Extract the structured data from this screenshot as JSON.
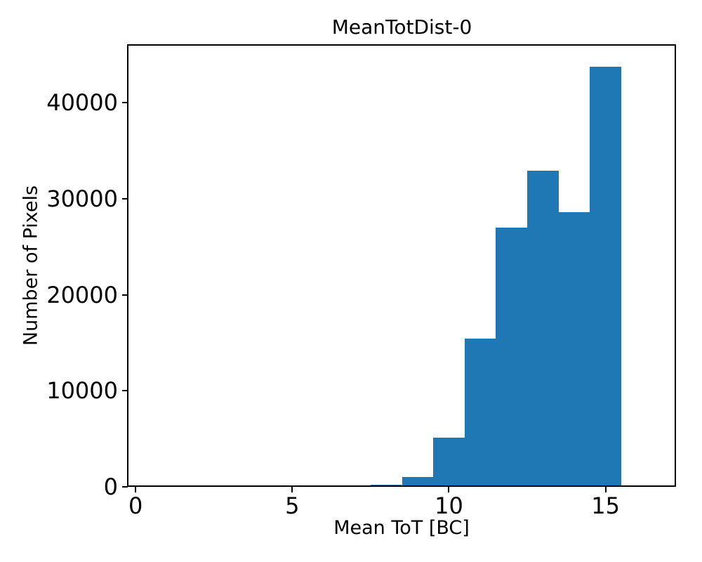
{
  "figure": {
    "background_color": "#ffffff",
    "text_color": "#000000"
  },
  "chart_data": {
    "type": "bar",
    "subtype": "histogram",
    "title": "MeanTotDist-0",
    "xlabel": "Mean ToT [BC]",
    "ylabel": "Number of Pixels",
    "bar_color": "#1f77b4",
    "bin_edges": [
      0.5,
      1.5,
      2.5,
      3.5,
      4.5,
      5.5,
      6.5,
      7.5,
      8.5,
      9.5,
      10.5,
      11.5,
      12.5,
      13.5,
      14.5,
      15.5,
      16.5
    ],
    "counts": [
      0,
      0,
      0,
      0,
      0,
      0,
      0,
      250,
      1000,
      5100,
      15400,
      27000,
      32900,
      28600,
      43700,
      0
    ],
    "xlim": [
      -0.25,
      17.25
    ],
    "ylim": [
      0,
      46000
    ],
    "xticks": [
      0,
      5,
      10,
      15
    ],
    "xtick_labels": [
      "0",
      "5",
      "10",
      "15"
    ],
    "yticks": [
      0,
      10000,
      20000,
      30000,
      40000
    ],
    "ytick_labels": [
      "0",
      "10000",
      "20000",
      "30000",
      "40000"
    ],
    "grid": false,
    "legend": null
  }
}
